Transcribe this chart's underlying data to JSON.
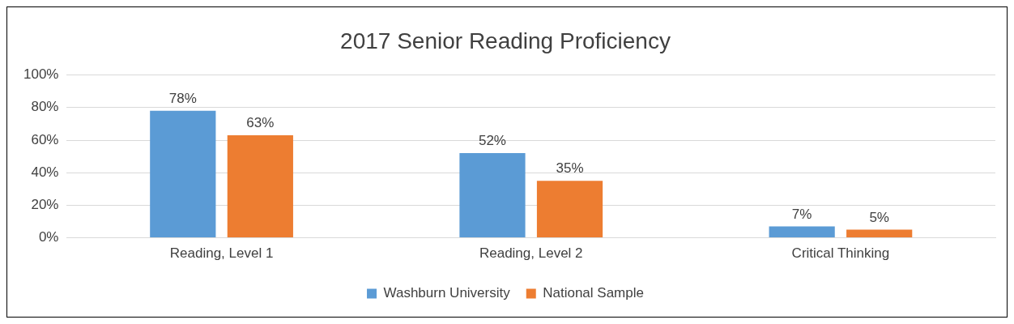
{
  "chart_data": {
    "type": "bar",
    "title": "2017 Senior Reading Proficiency",
    "categories": [
      "Reading, Level 1",
      "Reading, Level 2",
      "Critical Thinking"
    ],
    "series": [
      {
        "name": "Washburn University",
        "color": "#5b9bd5",
        "values": [
          78,
          52,
          7
        ],
        "value_labels": [
          "78%",
          "52%",
          "7%"
        ]
      },
      {
        "name": "National Sample",
        "color": "#ed7d31",
        "values": [
          63,
          35,
          5
        ],
        "value_labels": [
          "63%",
          "35%",
          "5%"
        ]
      }
    ],
    "ylim": [
      0,
      100
    ],
    "yticks": [
      {
        "value": 0,
        "label": "0%"
      },
      {
        "value": 20,
        "label": "20%"
      },
      {
        "value": 40,
        "label": "40%"
      },
      {
        "value": 60,
        "label": "60%"
      },
      {
        "value": 80,
        "label": "80%"
      },
      {
        "value": 100,
        "label": "100%"
      }
    ],
    "grid": "y",
    "legend": "bottom"
  }
}
